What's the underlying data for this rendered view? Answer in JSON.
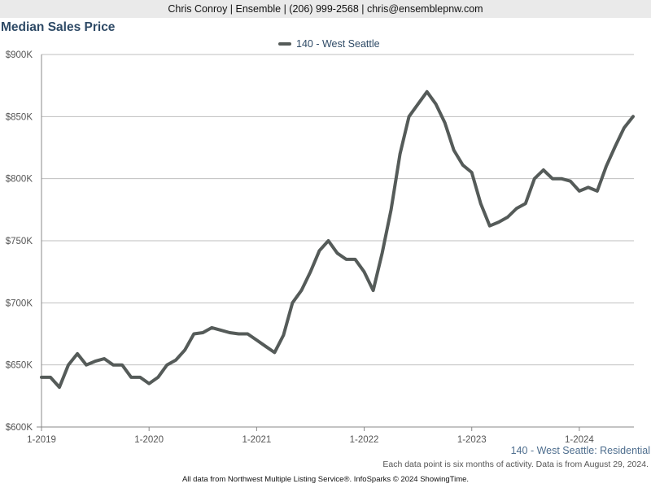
{
  "header": {
    "text": "Chris Conroy | Ensemble | (206) 999-2568 | chris@ensemblepnw.com"
  },
  "colors": {
    "series": "#555b59",
    "grid": "#bfbfbf",
    "axis": "#888888",
    "header_bg": "#eaeaea",
    "title": "#2e4a66"
  },
  "chart_data": {
    "type": "line",
    "title": "Median Sales Price",
    "xlabel": "",
    "ylabel": "",
    "ylim": [
      600000,
      900000
    ],
    "y_ticks": [
      {
        "value": 600000,
        "label": "$600K"
      },
      {
        "value": 650000,
        "label": "$650K"
      },
      {
        "value": 700000,
        "label": "$700K"
      },
      {
        "value": 750000,
        "label": "$750K"
      },
      {
        "value": 800000,
        "label": "$800K"
      },
      {
        "value": 850000,
        "label": "$850K"
      },
      {
        "value": 900000,
        "label": "$900K"
      }
    ],
    "x_range": [
      "2019-01",
      "2024-07"
    ],
    "x_ticks": [
      {
        "value": "2019-01",
        "label": "1-2019"
      },
      {
        "value": "2020-01",
        "label": "1-2020"
      },
      {
        "value": "2021-01",
        "label": "1-2021"
      },
      {
        "value": "2022-01",
        "label": "1-2022"
      },
      {
        "value": "2023-01",
        "label": "1-2023"
      },
      {
        "value": "2024-01",
        "label": "1-2024"
      }
    ],
    "grid": true,
    "legend_position": "top-center",
    "series": [
      {
        "name": "140 - West Seattle",
        "points": [
          [
            "2019-01",
            640000
          ],
          [
            "2019-02",
            640000
          ],
          [
            "2019-03",
            632000
          ],
          [
            "2019-04",
            650000
          ],
          [
            "2019-05",
            659000
          ],
          [
            "2019-06",
            650000
          ],
          [
            "2019-07",
            653000
          ],
          [
            "2019-08",
            655000
          ],
          [
            "2019-09",
            650000
          ],
          [
            "2019-10",
            650000
          ],
          [
            "2019-11",
            640000
          ],
          [
            "2019-12",
            640000
          ],
          [
            "2020-01",
            635000
          ],
          [
            "2020-02",
            640000
          ],
          [
            "2020-03",
            650000
          ],
          [
            "2020-04",
            654000
          ],
          [
            "2020-05",
            662000
          ],
          [
            "2020-06",
            675000
          ],
          [
            "2020-07",
            676000
          ],
          [
            "2020-08",
            680000
          ],
          [
            "2020-09",
            678000
          ],
          [
            "2020-10",
            676000
          ],
          [
            "2020-11",
            675000
          ],
          [
            "2020-12",
            675000
          ],
          [
            "2021-01",
            670000
          ],
          [
            "2021-02",
            665000
          ],
          [
            "2021-03",
            660000
          ],
          [
            "2021-04",
            674000
          ],
          [
            "2021-05",
            700000
          ],
          [
            "2021-06",
            710000
          ],
          [
            "2021-07",
            725000
          ],
          [
            "2021-08",
            742000
          ],
          [
            "2021-09",
            750000
          ],
          [
            "2021-10",
            740000
          ],
          [
            "2021-11",
            735000
          ],
          [
            "2021-12",
            735000
          ],
          [
            "2022-01",
            725000
          ],
          [
            "2022-02",
            710000
          ],
          [
            "2022-03",
            740000
          ],
          [
            "2022-04",
            775000
          ],
          [
            "2022-05",
            820000
          ],
          [
            "2022-06",
            850000
          ],
          [
            "2022-07",
            860000
          ],
          [
            "2022-08",
            870000
          ],
          [
            "2022-09",
            860000
          ],
          [
            "2022-10",
            845000
          ],
          [
            "2022-11",
            823000
          ],
          [
            "2022-12",
            811000
          ],
          [
            "2023-01",
            805000
          ],
          [
            "2023-02",
            780000
          ],
          [
            "2023-03",
            762000
          ],
          [
            "2023-04",
            765000
          ],
          [
            "2023-05",
            769000
          ],
          [
            "2023-06",
            776000
          ],
          [
            "2023-07",
            780000
          ],
          [
            "2023-08",
            800000
          ],
          [
            "2023-09",
            807000
          ],
          [
            "2023-10",
            800000
          ],
          [
            "2023-11",
            800000
          ],
          [
            "2023-12",
            798000
          ],
          [
            "2024-01",
            790000
          ],
          [
            "2024-02",
            793000
          ],
          [
            "2024-03",
            790000
          ],
          [
            "2024-04",
            810000
          ],
          [
            "2024-05",
            826000
          ],
          [
            "2024-06",
            841000
          ],
          [
            "2024-07",
            850000
          ]
        ]
      }
    ]
  },
  "series_note": "140 - West Seattle: Residential",
  "footnote": "Each data point is six months of activity. Data is from August 29, 2024.",
  "source_note": "All data from Northwest Multiple Listing Service®. InfoSparks © 2024 ShowingTime."
}
